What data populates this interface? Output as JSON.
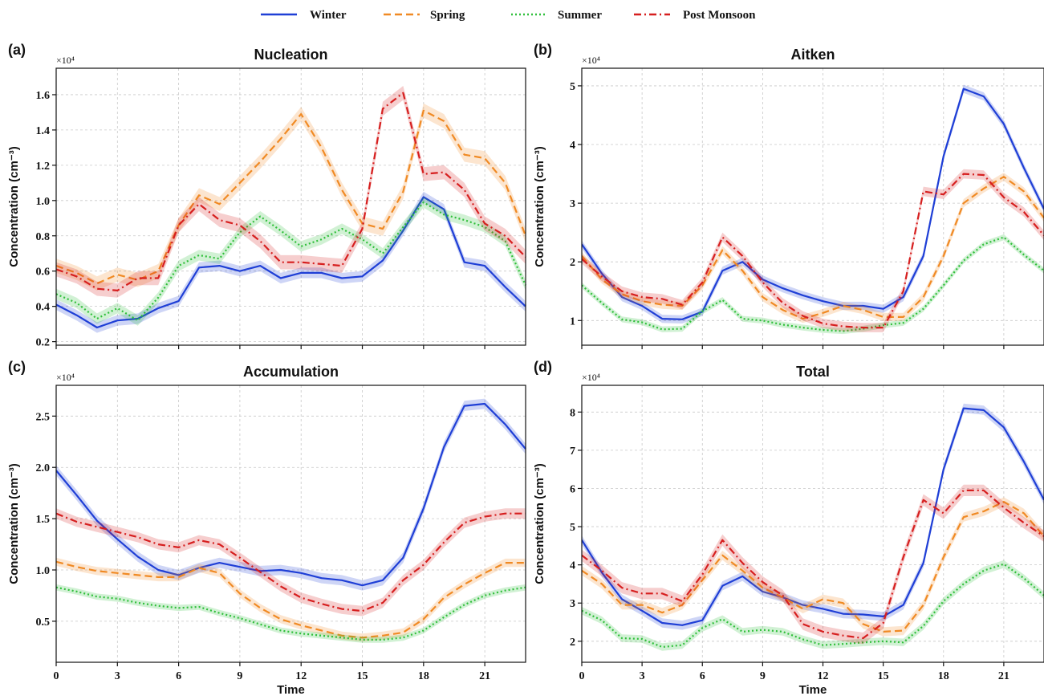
{
  "legend": {
    "entries": [
      {
        "name": "Winter",
        "color": "#1f3fd6",
        "dash": "solid"
      },
      {
        "name": "Spring",
        "color": "#f08a24",
        "dash": "dashed"
      },
      {
        "name": "Summer",
        "color": "#2fbf3a",
        "dash": "dotted"
      },
      {
        "name": "Post Monsoon",
        "color": "#d61f1f",
        "dash": "dashdot"
      }
    ]
  },
  "chart_data": [
    {
      "type": "line",
      "panel_label": "(a)",
      "title": "Nucleation",
      "xlabel": "",
      "ylabel": "Concentration (cm⁻³)",
      "y_multiplier": "×10⁴",
      "xlim": [
        0,
        23
      ],
      "ylim": [
        0.18,
        1.75
      ],
      "xticks": [
        0,
        3,
        6,
        9,
        12,
        15,
        18,
        21
      ],
      "xticklabels": [
        "",
        "",
        "",
        "",
        "",
        "",
        "",
        ""
      ],
      "yticks": [
        0.2,
        0.4,
        0.6,
        0.8,
        1.0,
        1.2,
        1.4,
        1.6
      ],
      "yticklabels": [
        "0.2",
        "0.4",
        "0.6",
        "0.8",
        "1.0",
        "1.2",
        "1.4",
        "1.6"
      ],
      "grid": true,
      "series": [
        {
          "name": "Winter",
          "band": 0.03,
          "values": [
            0.41,
            0.35,
            0.28,
            0.32,
            0.33,
            0.39,
            0.43,
            0.62,
            0.63,
            0.6,
            0.63,
            0.56,
            0.59,
            0.59,
            0.56,
            0.57,
            0.66,
            0.83,
            1.02,
            0.95,
            0.65,
            0.63,
            0.51,
            0.4
          ]
        },
        {
          "name": "Spring",
          "band": 0.04,
          "values": [
            0.63,
            0.59,
            0.53,
            0.58,
            0.55,
            0.6,
            0.86,
            1.03,
            0.98,
            1.1,
            1.22,
            1.35,
            1.49,
            1.3,
            1.06,
            0.87,
            0.84,
            1.05,
            1.51,
            1.45,
            1.26,
            1.24,
            1.1,
            0.8
          ]
        },
        {
          "name": "Summer",
          "band": 0.03,
          "values": [
            0.47,
            0.42,
            0.33,
            0.39,
            0.32,
            0.45,
            0.63,
            0.69,
            0.67,
            0.82,
            0.91,
            0.83,
            0.74,
            0.78,
            0.84,
            0.78,
            0.7,
            0.85,
            0.99,
            0.92,
            0.89,
            0.85,
            0.77,
            0.52
          ]
        },
        {
          "name": "Post Monsoon",
          "band": 0.04,
          "values": [
            0.61,
            0.57,
            0.5,
            0.49,
            0.56,
            0.56,
            0.86,
            0.98,
            0.89,
            0.86,
            0.77,
            0.65,
            0.65,
            0.64,
            0.63,
            0.84,
            1.52,
            1.61,
            1.15,
            1.16,
            1.06,
            0.87,
            0.8,
            0.68
          ]
        }
      ]
    },
    {
      "type": "line",
      "panel_label": "(b)",
      "title": "Aitken",
      "xlabel": "",
      "ylabel": "Concentration (cm⁻³)",
      "y_multiplier": "×10⁴",
      "xlim": [
        0,
        23
      ],
      "ylim": [
        0.58,
        5.3
      ],
      "xticks": [
        0,
        3,
        6,
        9,
        12,
        15,
        18,
        21
      ],
      "xticklabels": [
        "",
        "",
        "",
        "",
        "",
        "",
        "",
        ""
      ],
      "yticks": [
        1,
        2,
        3,
        4,
        5
      ],
      "yticklabels": [
        "1",
        "2",
        "3",
        "4",
        "5"
      ],
      "grid": true,
      "series": [
        {
          "name": "Winter",
          "band": 0.07,
          "values": [
            2.3,
            1.8,
            1.4,
            1.25,
            1.03,
            1.02,
            1.15,
            1.85,
            2.0,
            1.7,
            1.55,
            1.43,
            1.33,
            1.25,
            1.25,
            1.2,
            1.4,
            2.1,
            3.8,
            4.95,
            4.82,
            4.35,
            3.6,
            2.9
          ]
        },
        {
          "name": "Spring",
          "band": 0.07,
          "values": [
            2.1,
            1.7,
            1.45,
            1.33,
            1.27,
            1.25,
            1.6,
            2.2,
            1.85,
            1.4,
            1.18,
            1.03,
            1.13,
            1.25,
            1.18,
            1.06,
            1.06,
            1.4,
            2.1,
            3.0,
            3.25,
            3.45,
            3.2,
            2.75
          ]
        },
        {
          "name": "Summer",
          "band": 0.05,
          "values": [
            1.6,
            1.3,
            1.02,
            0.97,
            0.85,
            0.86,
            1.16,
            1.35,
            1.03,
            1.0,
            0.93,
            0.88,
            0.84,
            0.82,
            0.86,
            0.92,
            0.96,
            1.2,
            1.6,
            2.02,
            2.3,
            2.42,
            2.12,
            1.85
          ]
        },
        {
          "name": "Post Monsoon",
          "band": 0.08,
          "values": [
            2.05,
            1.75,
            1.5,
            1.4,
            1.37,
            1.27,
            1.65,
            2.42,
            2.1,
            1.65,
            1.3,
            1.08,
            0.95,
            0.9,
            0.88,
            0.88,
            1.5,
            3.2,
            3.15,
            3.5,
            3.48,
            3.1,
            2.85,
            2.45
          ]
        }
      ]
    },
    {
      "type": "line",
      "panel_label": "(c)",
      "title": "Accumulation",
      "xlabel": "Time",
      "ylabel": "Concentration (cm⁻³)",
      "y_multiplier": "×10⁴",
      "xlim": [
        0,
        23
      ],
      "ylim": [
        0.1,
        2.8
      ],
      "xticks": [
        0,
        3,
        6,
        9,
        12,
        15,
        18,
        21
      ],
      "xticklabels": [
        "0",
        "3",
        "6",
        "9",
        "12",
        "15",
        "18",
        "21"
      ],
      "yticks": [
        0.5,
        1.0,
        1.5,
        2.0,
        2.5
      ],
      "yticklabels": [
        "0.5",
        "1.0",
        "1.5",
        "2.0",
        "2.5"
      ],
      "grid": true,
      "series": [
        {
          "name": "Winter",
          "band": 0.05,
          "values": [
            1.97,
            1.73,
            1.48,
            1.3,
            1.13,
            1.0,
            0.95,
            1.02,
            1.07,
            1.03,
            0.99,
            1.0,
            0.97,
            0.92,
            0.9,
            0.85,
            0.9,
            1.12,
            1.6,
            2.2,
            2.6,
            2.62,
            2.42,
            2.18
          ]
        },
        {
          "name": "Spring",
          "band": 0.04,
          "values": [
            1.08,
            1.03,
            0.99,
            0.97,
            0.95,
            0.93,
            0.93,
            1.02,
            0.97,
            0.77,
            0.63,
            0.52,
            0.46,
            0.41,
            0.36,
            0.34,
            0.36,
            0.39,
            0.52,
            0.73,
            0.86,
            0.97,
            1.07,
            1.07
          ]
        },
        {
          "name": "Summer",
          "band": 0.03,
          "values": [
            0.83,
            0.79,
            0.74,
            0.72,
            0.68,
            0.65,
            0.63,
            0.64,
            0.58,
            0.53,
            0.47,
            0.41,
            0.38,
            0.36,
            0.34,
            0.32,
            0.32,
            0.34,
            0.41,
            0.54,
            0.66,
            0.75,
            0.8,
            0.83
          ]
        },
        {
          "name": "Post Monsoon",
          "band": 0.05,
          "values": [
            1.55,
            1.47,
            1.42,
            1.37,
            1.32,
            1.25,
            1.22,
            1.29,
            1.25,
            1.12,
            0.98,
            0.84,
            0.73,
            0.67,
            0.62,
            0.6,
            0.68,
            0.9,
            1.05,
            1.27,
            1.46,
            1.52,
            1.55,
            1.55
          ]
        }
      ]
    },
    {
      "type": "line",
      "panel_label": "(d)",
      "title": "Total",
      "xlabel": "Time",
      "ylabel": "Concentration (cm⁻³)",
      "y_multiplier": "×10⁴",
      "xlim": [
        0,
        23
      ],
      "ylim": [
        1.45,
        8.7
      ],
      "xticks": [
        0,
        3,
        6,
        9,
        12,
        15,
        18,
        21
      ],
      "xticklabels": [
        "0",
        "3",
        "6",
        "9",
        "12",
        "15",
        "18",
        "21"
      ],
      "yticks": [
        2,
        3,
        4,
        5,
        6,
        7,
        8
      ],
      "yticklabels": [
        "2",
        "3",
        "4",
        "5",
        "6",
        "7",
        "8"
      ],
      "grid": true,
      "series": [
        {
          "name": "Winter",
          "band": 0.12,
          "values": [
            4.65,
            3.8,
            3.1,
            2.8,
            2.48,
            2.42,
            2.55,
            3.45,
            3.7,
            3.3,
            3.15,
            2.95,
            2.85,
            2.72,
            2.7,
            2.65,
            2.95,
            4.05,
            6.5,
            8.1,
            8.05,
            7.6,
            6.7,
            5.7
          ]
        },
        {
          "name": "Spring",
          "band": 0.12,
          "values": [
            3.85,
            3.5,
            2.95,
            2.95,
            2.75,
            2.95,
            3.6,
            4.25,
            3.85,
            3.4,
            3.15,
            2.85,
            3.1,
            3.0,
            2.45,
            2.25,
            2.28,
            2.95,
            4.2,
            5.25,
            5.4,
            5.65,
            5.35,
            4.75
          ]
        },
        {
          "name": "Summer",
          "band": 0.1,
          "values": [
            2.8,
            2.55,
            2.08,
            2.06,
            1.85,
            1.9,
            2.35,
            2.58,
            2.25,
            2.3,
            2.25,
            2.05,
            1.9,
            1.93,
            1.97,
            2.0,
            1.97,
            2.4,
            3.05,
            3.5,
            3.85,
            4.02,
            3.65,
            3.2
          ]
        },
        {
          "name": "Post Monsoon",
          "band": 0.15,
          "values": [
            4.25,
            3.85,
            3.4,
            3.25,
            3.25,
            3.05,
            3.75,
            4.65,
            4.05,
            3.55,
            3.2,
            2.45,
            2.25,
            2.15,
            2.08,
            2.48,
            4.2,
            5.7,
            5.35,
            5.95,
            5.95,
            5.5,
            5.1,
            4.75
          ]
        }
      ]
    }
  ]
}
